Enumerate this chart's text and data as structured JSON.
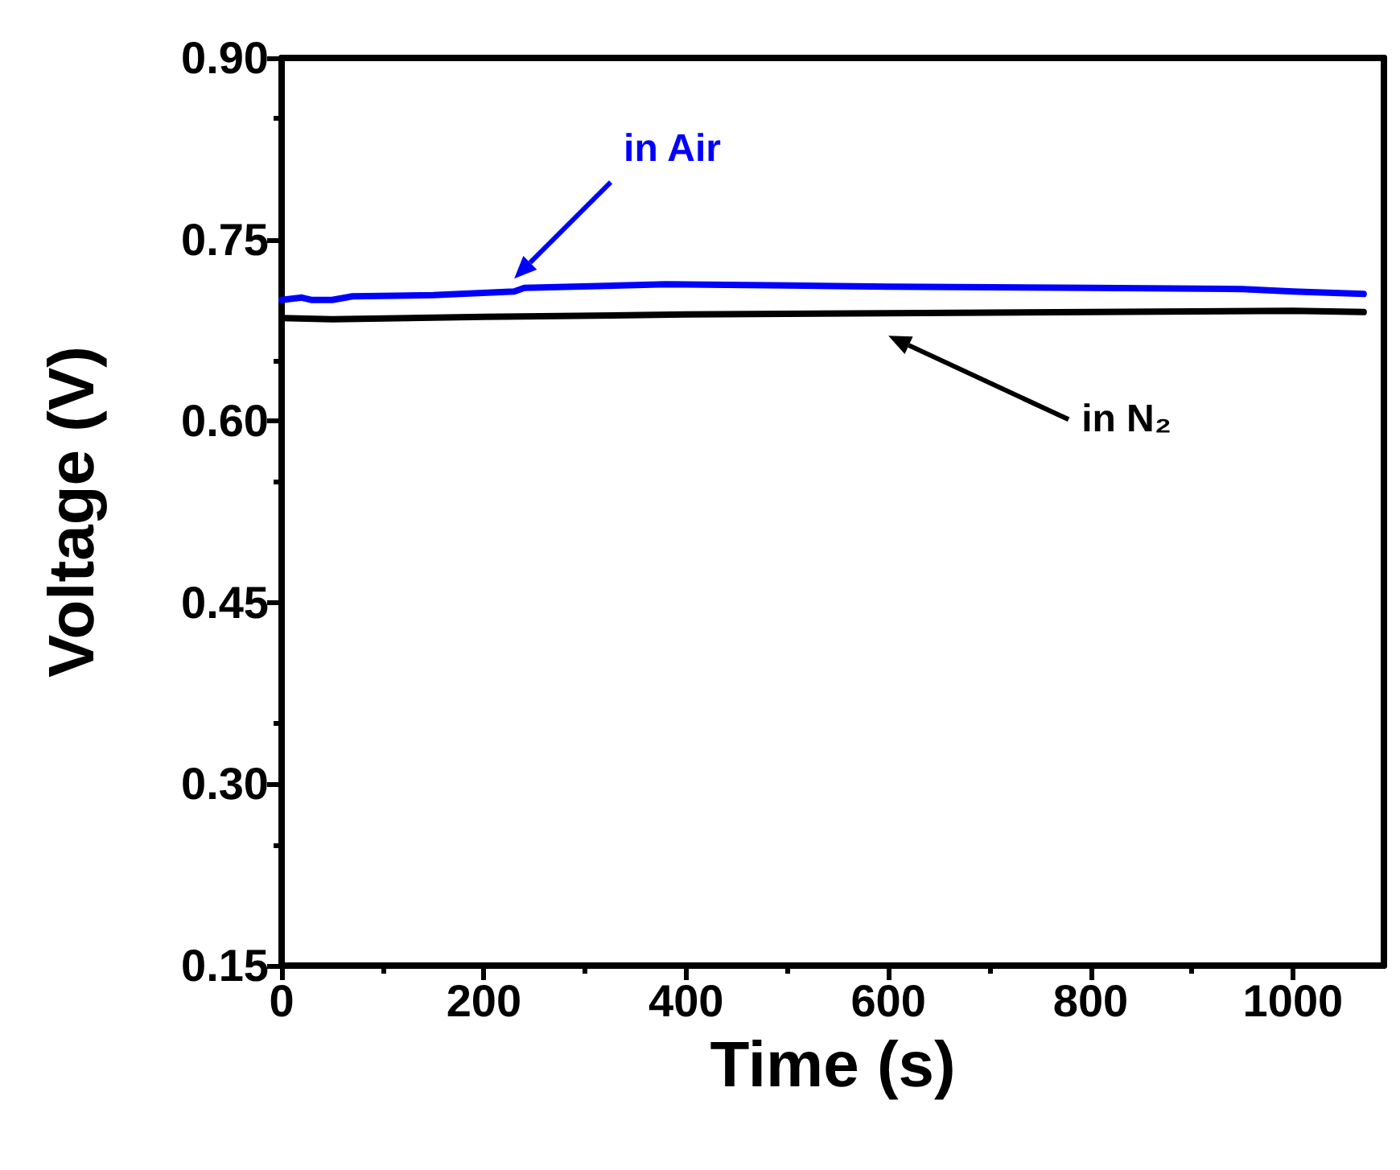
{
  "chart_data": {
    "type": "line",
    "xlabel": "Time (s)",
    "ylabel": "Voltage (V)",
    "xlim": [
      0,
      1090
    ],
    "xticks": [
      0,
      200,
      400,
      600,
      800,
      1000
    ],
    "ylim": [
      0.15,
      0.9
    ],
    "yticks": [
      0.15,
      {
        "value": 0.3,
        "label": "0.30"
      },
      0.45,
      {
        "value": 0.6,
        "label": "0.60"
      },
      0.75,
      {
        "value": 0.9,
        "label": "0.90"
      }
    ],
    "grid": false,
    "legend": false,
    "marker": "none",
    "line_style": "solid",
    "series": [
      {
        "name": "in Air",
        "color": "#0000ff",
        "x": [
          0,
          20,
          30,
          50,
          70,
          150,
          230,
          240,
          380,
          500,
          600,
          800,
          950,
          1000,
          1070
        ],
        "values": [
          0.7,
          0.702,
          0.7,
          0.7,
          0.703,
          0.704,
          0.707,
          0.71,
          0.713,
          0.712,
          0.711,
          0.71,
          0.709,
          0.707,
          0.705
        ]
      },
      {
        "name": "in N₂",
        "color": "#000000",
        "x": [
          0,
          50,
          200,
          400,
          600,
          800,
          1000,
          1070
        ],
        "values": [
          0.685,
          0.684,
          0.686,
          0.688,
          0.689,
          0.69,
          0.691,
          0.69
        ]
      }
    ]
  }
}
